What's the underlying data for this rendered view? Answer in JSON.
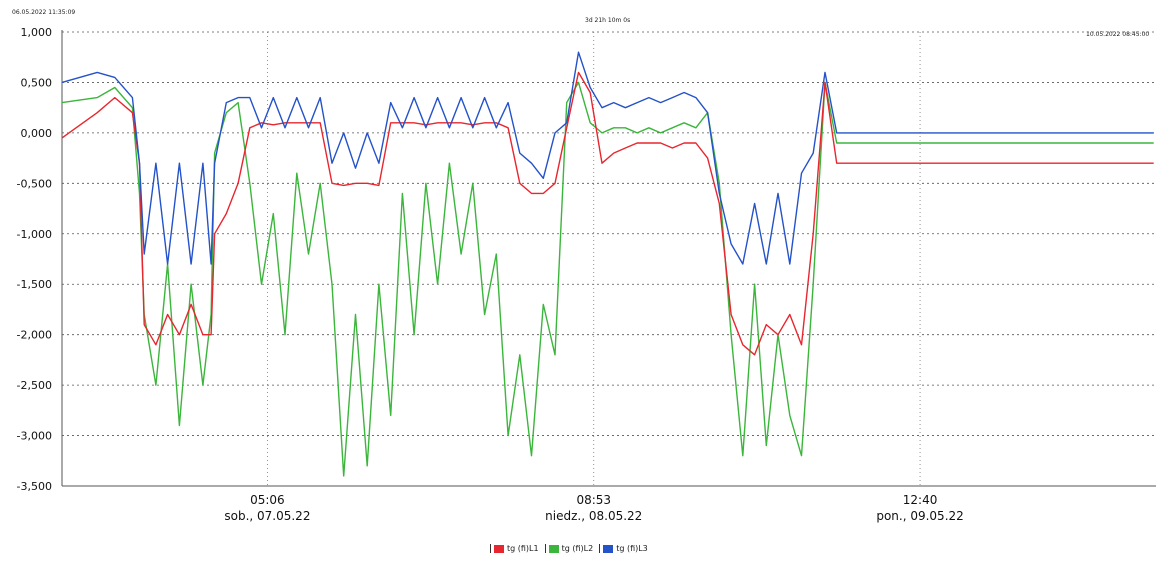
{
  "header": {
    "start_time": "06.05.2022 11:35:09",
    "duration": "3d 21h 10m 0s",
    "end_time": "10.05.2022 08:45:00"
  },
  "legend": [
    {
      "label": "tg (fi)L1",
      "color": "#e8262f"
    },
    {
      "label": "tg (fi)L2",
      "color": "#3bb53b"
    },
    {
      "label": "tg (fi)L3",
      "color": "#2452c8"
    }
  ],
  "chart_data": {
    "type": "line",
    "title": "",
    "xlabel": "",
    "ylabel": "",
    "ylim": [
      -3.5,
      1.0
    ],
    "grid": true,
    "legend_position": "bottom",
    "yticks": [
      1.0,
      0.5,
      0.0,
      -0.5,
      -1.0,
      -1.5,
      -2.0,
      -2.5,
      -3.0,
      -3.5
    ],
    "ytick_labels": [
      "1,000",
      "0,500",
      "0,000",
      "-0,500",
      "-1,000",
      "-1,500",
      "-2,000",
      "-2,500",
      "-3,000",
      "-3,500"
    ],
    "xticks": [
      {
        "time": "05:06",
        "date": "sob., 07.05.22",
        "hours": 17.5
      },
      {
        "time": "08:53",
        "date": "niedz., 08.05.22",
        "hours": 45.3
      },
      {
        "time": "12:40",
        "date": "pon., 09.05.22",
        "hours": 73.1
      }
    ],
    "x_hours_span": 93.2,
    "x": [
      0,
      3,
      4.5,
      6,
      6.6,
      7,
      8,
      9,
      10,
      11,
      12,
      12.7,
      13,
      14,
      15,
      16,
      17,
      18,
      19,
      20,
      21,
      22,
      23,
      24,
      25,
      26,
      27,
      28,
      29,
      30,
      31,
      32,
      33,
      34,
      35,
      36,
      37,
      38,
      39,
      40,
      41,
      42,
      43,
      44,
      45,
      46,
      47,
      48,
      49,
      50,
      51,
      52,
      53,
      54,
      55,
      56,
      57,
      58,
      59,
      60,
      61,
      62,
      63,
      64,
      65,
      66,
      67,
      68,
      69,
      70,
      71,
      72,
      73,
      74,
      75,
      76,
      77,
      78,
      79,
      80,
      81,
      82,
      83,
      84,
      85,
      86,
      87,
      88,
      89,
      90,
      91,
      92,
      93
    ],
    "series": [
      {
        "name": "tg (fi)L1",
        "values": [
          -0.05,
          0.2,
          0.35,
          0.2,
          -0.3,
          -1.9,
          -2.1,
          -1.8,
          -2.0,
          -1.7,
          -2.0,
          -2.0,
          -1.0,
          -0.8,
          -0.5,
          0.05,
          0.1,
          0.08,
          0.1,
          0.1,
          0.1,
          0.1,
          -0.5,
          -0.52,
          -0.5,
          -0.5,
          -0.52,
          0.1,
          0.1,
          0.1,
          0.08,
          0.1,
          0.1,
          0.1,
          0.08,
          0.1,
          0.1,
          0.05,
          -0.5,
          -0.6,
          -0.6,
          -0.5,
          0.05,
          0.6,
          0.4,
          -0.3,
          -0.2,
          -0.15,
          -0.1,
          -0.1,
          -0.1,
          -0.15,
          -0.1,
          -0.1,
          -0.25,
          -0.7,
          -1.8,
          -2.1,
          -2.2,
          -1.9,
          -2.0,
          -1.8,
          -2.1,
          -1.0,
          0.5,
          -0.3,
          -0.3,
          -0.3,
          -0.3,
          -0.3,
          -0.3,
          -0.3,
          -0.3,
          -0.3,
          -0.3,
          -0.3,
          -0.3,
          -0.3,
          -0.3,
          -0.3,
          -0.3,
          -0.3,
          -0.3,
          -0.3,
          -0.3,
          -0.3,
          -0.3,
          -0.3,
          -0.3,
          -0.3,
          -0.3,
          -0.3,
          -0.3
        ]
      },
      {
        "name": "tg (fi)L2",
        "values": [
          0.3,
          0.35,
          0.45,
          0.25,
          -0.6,
          -1.8,
          -2.5,
          -1.3,
          -2.9,
          -1.5,
          -2.5,
          -1.8,
          -0.2,
          0.2,
          0.3,
          -0.5,
          -1.5,
          -0.8,
          -2.0,
          -0.4,
          -1.2,
          -0.5,
          -1.5,
          -3.4,
          -1.8,
          -3.3,
          -1.5,
          -2.8,
          -0.6,
          -2.0,
          -0.5,
          -1.5,
          -0.3,
          -1.2,
          -0.5,
          -1.8,
          -1.2,
          -3.0,
          -2.2,
          -3.2,
          -1.7,
          -2.2,
          0.3,
          0.5,
          0.1,
          0.0,
          0.05,
          0.05,
          0.0,
          0.05,
          0.0,
          0.05,
          0.1,
          0.05,
          0.2,
          -0.5,
          -2.0,
          -3.2,
          -1.5,
          -3.1,
          -2.0,
          -2.8,
          -3.2,
          -1.5,
          0.5,
          -0.1,
          -0.1,
          -0.1,
          -0.1,
          -0.1,
          -0.1,
          -0.1,
          -0.1,
          -0.1,
          -0.1,
          -0.1,
          -0.1,
          -0.1,
          -0.1,
          -0.1,
          -0.1,
          -0.1,
          -0.1,
          -0.1,
          -0.1,
          -0.1,
          -0.1,
          -0.1,
          -0.1,
          -0.1,
          -0.1,
          -0.1,
          -0.1
        ]
      },
      {
        "name": "tg (fi)L3",
        "values": [
          0.5,
          0.6,
          0.55,
          0.35,
          -0.3,
          -1.2,
          -0.3,
          -1.3,
          -0.3,
          -1.3,
          -0.3,
          -1.3,
          -0.3,
          0.3,
          0.35,
          0.35,
          0.05,
          0.35,
          0.05,
          0.35,
          0.05,
          0.35,
          -0.3,
          0.0,
          -0.35,
          0.0,
          -0.3,
          0.3,
          0.05,
          0.35,
          0.05,
          0.35,
          0.05,
          0.35,
          0.05,
          0.35,
          0.05,
          0.3,
          -0.2,
          -0.3,
          -0.45,
          0.0,
          0.1,
          0.8,
          0.45,
          0.25,
          0.3,
          0.25,
          0.3,
          0.35,
          0.3,
          0.35,
          0.4,
          0.35,
          0.2,
          -0.6,
          -1.1,
          -1.3,
          -0.7,
          -1.3,
          -0.6,
          -1.3,
          -0.4,
          -0.2,
          0.6,
          0.0,
          0.0,
          0.0,
          0.0,
          0.0,
          0.0,
          0.0,
          0.0,
          0.0,
          0.0,
          0.0,
          0.0,
          0.0,
          0.0,
          0.0,
          0.0,
          0.0,
          0.0,
          0.0,
          0.0,
          0.0,
          0.0,
          0.0,
          0.0,
          0.0,
          0.0,
          0.0,
          0.0
        ]
      }
    ]
  }
}
